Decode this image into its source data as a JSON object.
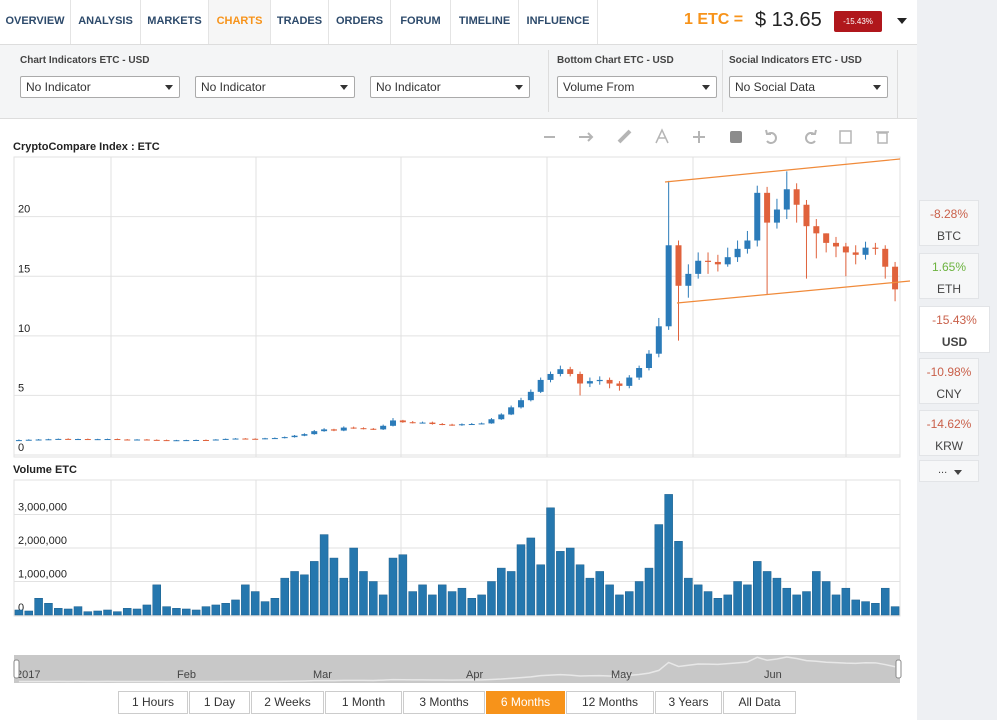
{
  "nav": {
    "tabs": [
      "OVERVIEW",
      "ANALYSIS",
      "MARKETS",
      "CHARTS",
      "TRADES",
      "ORDERS",
      "FORUM",
      "TIMELINE",
      "INFLUENCE"
    ],
    "active": 3
  },
  "price": {
    "label": "1 ETC =",
    "value": "$ 13.65",
    "change": "-15.43%"
  },
  "indicators": {
    "groups": [
      {
        "title": "Chart Indicators ETC - USD",
        "selects": [
          "No Indicator",
          "No Indicator",
          "No Indicator"
        ]
      },
      {
        "title": "Bottom Chart ETC - USD",
        "selects": [
          "Volume From"
        ]
      },
      {
        "title": "Social Indicators ETC - USD",
        "selects": [
          "No Social Data"
        ]
      }
    ]
  },
  "chart_data": [
    {
      "type": "candlestick",
      "title": "CryptoCompare Index : ETC",
      "open": [
        1.22,
        1.25,
        1.28,
        1.3,
        1.32,
        1.35,
        1.33,
        1.34,
        1.32,
        1.33,
        1.34,
        1.3,
        1.28,
        1.3,
        1.27,
        1.25,
        1.22,
        1.24,
        1.25,
        1.26,
        1.25,
        1.3,
        1.35,
        1.38,
        1.36,
        1.35,
        1.4,
        1.42,
        1.5,
        1.62,
        1.75,
        2.0,
        2.15,
        2.05,
        2.3,
        2.25,
        2.2,
        2.15,
        2.45,
        2.9,
        2.75,
        2.7,
        2.72,
        2.6,
        2.55,
        2.5,
        2.58,
        2.6,
        2.65,
        3.0,
        3.4,
        4.0,
        4.6,
        5.3,
        6.3,
        6.8,
        7.2,
        6.8,
        6.0,
        6.2,
        6.3,
        6.0,
        5.8,
        6.5,
        7.3,
        8.5,
        10.8,
        17.6,
        14.2,
        15.2,
        16.3,
        16.2,
        16.0,
        16.6,
        17.3,
        18.0,
        22.0,
        19.5,
        20.6,
        22.3,
        21.0,
        19.2,
        18.6,
        17.8,
        17.5,
        17.0,
        16.8,
        17.4,
        17.3,
        15.8
      ],
      "high": [
        1.3,
        1.32,
        1.34,
        1.36,
        1.38,
        1.4,
        1.37,
        1.38,
        1.36,
        1.37,
        1.38,
        1.34,
        1.33,
        1.34,
        1.31,
        1.29,
        1.27,
        1.28,
        1.29,
        1.3,
        1.33,
        1.38,
        1.42,
        1.42,
        1.4,
        1.44,
        1.47,
        1.55,
        1.68,
        1.82,
        2.1,
        2.25,
        2.2,
        2.4,
        2.38,
        2.32,
        2.26,
        2.55,
        3.1,
        2.95,
        2.85,
        2.8,
        2.8,
        2.68,
        2.62,
        2.65,
        2.68,
        2.72,
        3.1,
        3.5,
        4.15,
        4.8,
        5.5,
        6.5,
        7.0,
        7.5,
        7.4,
        7.0,
        6.5,
        6.6,
        6.5,
        6.2,
        6.7,
        7.5,
        8.8,
        11.5,
        23.0,
        18.0,
        16.0,
        17.0,
        17.0,
        16.8,
        17.4,
        18.0,
        18.8,
        22.6,
        22.5,
        21.5,
        23.8,
        22.8,
        21.4,
        19.8,
        18.6,
        18.3,
        17.8,
        17.6,
        17.9,
        17.8,
        17.6,
        16.2
      ],
      "low": [
        1.18,
        1.22,
        1.25,
        1.27,
        1.29,
        1.3,
        1.3,
        1.29,
        1.29,
        1.3,
        1.27,
        1.25,
        1.25,
        1.24,
        1.22,
        1.19,
        1.19,
        1.21,
        1.22,
        1.22,
        1.22,
        1.27,
        1.32,
        1.33,
        1.31,
        1.32,
        1.37,
        1.39,
        1.46,
        1.58,
        1.7,
        1.95,
        2.0,
        2.0,
        2.2,
        2.15,
        2.1,
        2.1,
        2.4,
        2.7,
        2.65,
        2.65,
        2.55,
        2.5,
        2.45,
        2.45,
        2.55,
        2.58,
        2.62,
        2.95,
        3.35,
        3.9,
        4.5,
        5.2,
        6.1,
        6.6,
        6.6,
        5.0,
        5.7,
        5.9,
        5.6,
        5.4,
        5.6,
        6.3,
        7.1,
        8.2,
        10.5,
        9.6,
        13.2,
        14.8,
        15.2,
        15.4,
        15.8,
        16.2,
        16.9,
        17.5,
        13.5,
        19.0,
        19.8,
        19.5,
        14.8,
        16.5,
        17.0,
        16.6,
        15.0,
        16.0,
        16.4,
        16.8,
        14.8,
        12.9
      ],
      "close": [
        1.25,
        1.28,
        1.3,
        1.32,
        1.35,
        1.33,
        1.34,
        1.32,
        1.33,
        1.34,
        1.3,
        1.28,
        1.3,
        1.27,
        1.25,
        1.22,
        1.24,
        1.25,
        1.26,
        1.25,
        1.3,
        1.35,
        1.38,
        1.36,
        1.35,
        1.4,
        1.42,
        1.5,
        1.62,
        1.75,
        2.0,
        2.15,
        2.05,
        2.3,
        2.25,
        2.2,
        2.15,
        2.45,
        2.9,
        2.75,
        2.7,
        2.72,
        2.6,
        2.55,
        2.5,
        2.58,
        2.6,
        2.65,
        3.0,
        3.4,
        4.0,
        4.6,
        5.3,
        6.3,
        6.8,
        7.2,
        6.8,
        6.0,
        6.2,
        6.3,
        6.0,
        5.8,
        6.5,
        7.3,
        8.5,
        10.8,
        17.6,
        14.2,
        15.2,
        16.3,
        16.2,
        16.0,
        16.6,
        17.3,
        18.0,
        22.0,
        19.5,
        20.6,
        22.3,
        21.0,
        19.2,
        18.6,
        17.8,
        17.5,
        17.0,
        16.8,
        17.4,
        17.3,
        15.8,
        13.9
      ],
      "up_color": "#2b7bb9",
      "down_color": "#e0623c",
      "ylim": [
        0,
        24
      ],
      "yticks": [
        0,
        5,
        10,
        15,
        20
      ],
      "grid": true
    },
    {
      "type": "bar",
      "title": "Volume ETC",
      "values": [
        150000,
        120000,
        500000,
        350000,
        200000,
        180000,
        250000,
        100000,
        120000,
        150000,
        100000,
        200000,
        180000,
        300000,
        900000,
        250000,
        200000,
        180000,
        150000,
        250000,
        300000,
        350000,
        450000,
        900000,
        700000,
        400000,
        500000,
        1100000,
        1300000,
        1200000,
        1600000,
        2400000,
        1700000,
        1100000,
        2000000,
        1300000,
        1000000,
        600000,
        1700000,
        1800000,
        700000,
        900000,
        600000,
        900000,
        700000,
        800000,
        500000,
        600000,
        1000000,
        1400000,
        1300000,
        2100000,
        2300000,
        1500000,
        3200000,
        1900000,
        2000000,
        1500000,
        1100000,
        1300000,
        900000,
        600000,
        700000,
        1000000,
        1400000,
        2700000,
        3600000,
        2200000,
        1100000,
        900000,
        700000,
        500000,
        600000,
        1000000,
        900000,
        1600000,
        1300000,
        1100000,
        800000,
        600000,
        700000,
        1300000,
        1000000,
        600000,
        800000,
        450000,
        400000,
        350000,
        800000,
        250000
      ],
      "color": "#2577ae",
      "ylim": [
        0,
        4000000
      ],
      "yticks": [
        0,
        {
          "value": 1000000,
          "label": "1,000,000"
        },
        {
          "value": 2000000,
          "label": "2,000,000"
        },
        {
          "value": 3000000,
          "label": "3,000,000"
        }
      ],
      "grid": true
    }
  ],
  "conversions": [
    {
      "change": "-8.28%",
      "symbol": "BTC"
    },
    {
      "change": "1.65%",
      "symbol": "ETH"
    },
    {
      "change": "-15.43%",
      "symbol": "USD"
    },
    {
      "change": "-10.98%",
      "symbol": "CNY"
    },
    {
      "change": "-14.62%",
      "symbol": "KRW"
    }
  ],
  "conversions_active": 2,
  "more": "...",
  "navigator": {
    "labels": [
      "2017",
      "Feb",
      "Mar",
      "Apr",
      "May",
      "Jun"
    ]
  },
  "ranges": {
    "buttons": [
      "1 Hours",
      "1 Day",
      "2 Weeks",
      "1 Month",
      "3 Months",
      "6 Months",
      "12 Months",
      "3 Years",
      "All Data"
    ],
    "active": 5
  }
}
